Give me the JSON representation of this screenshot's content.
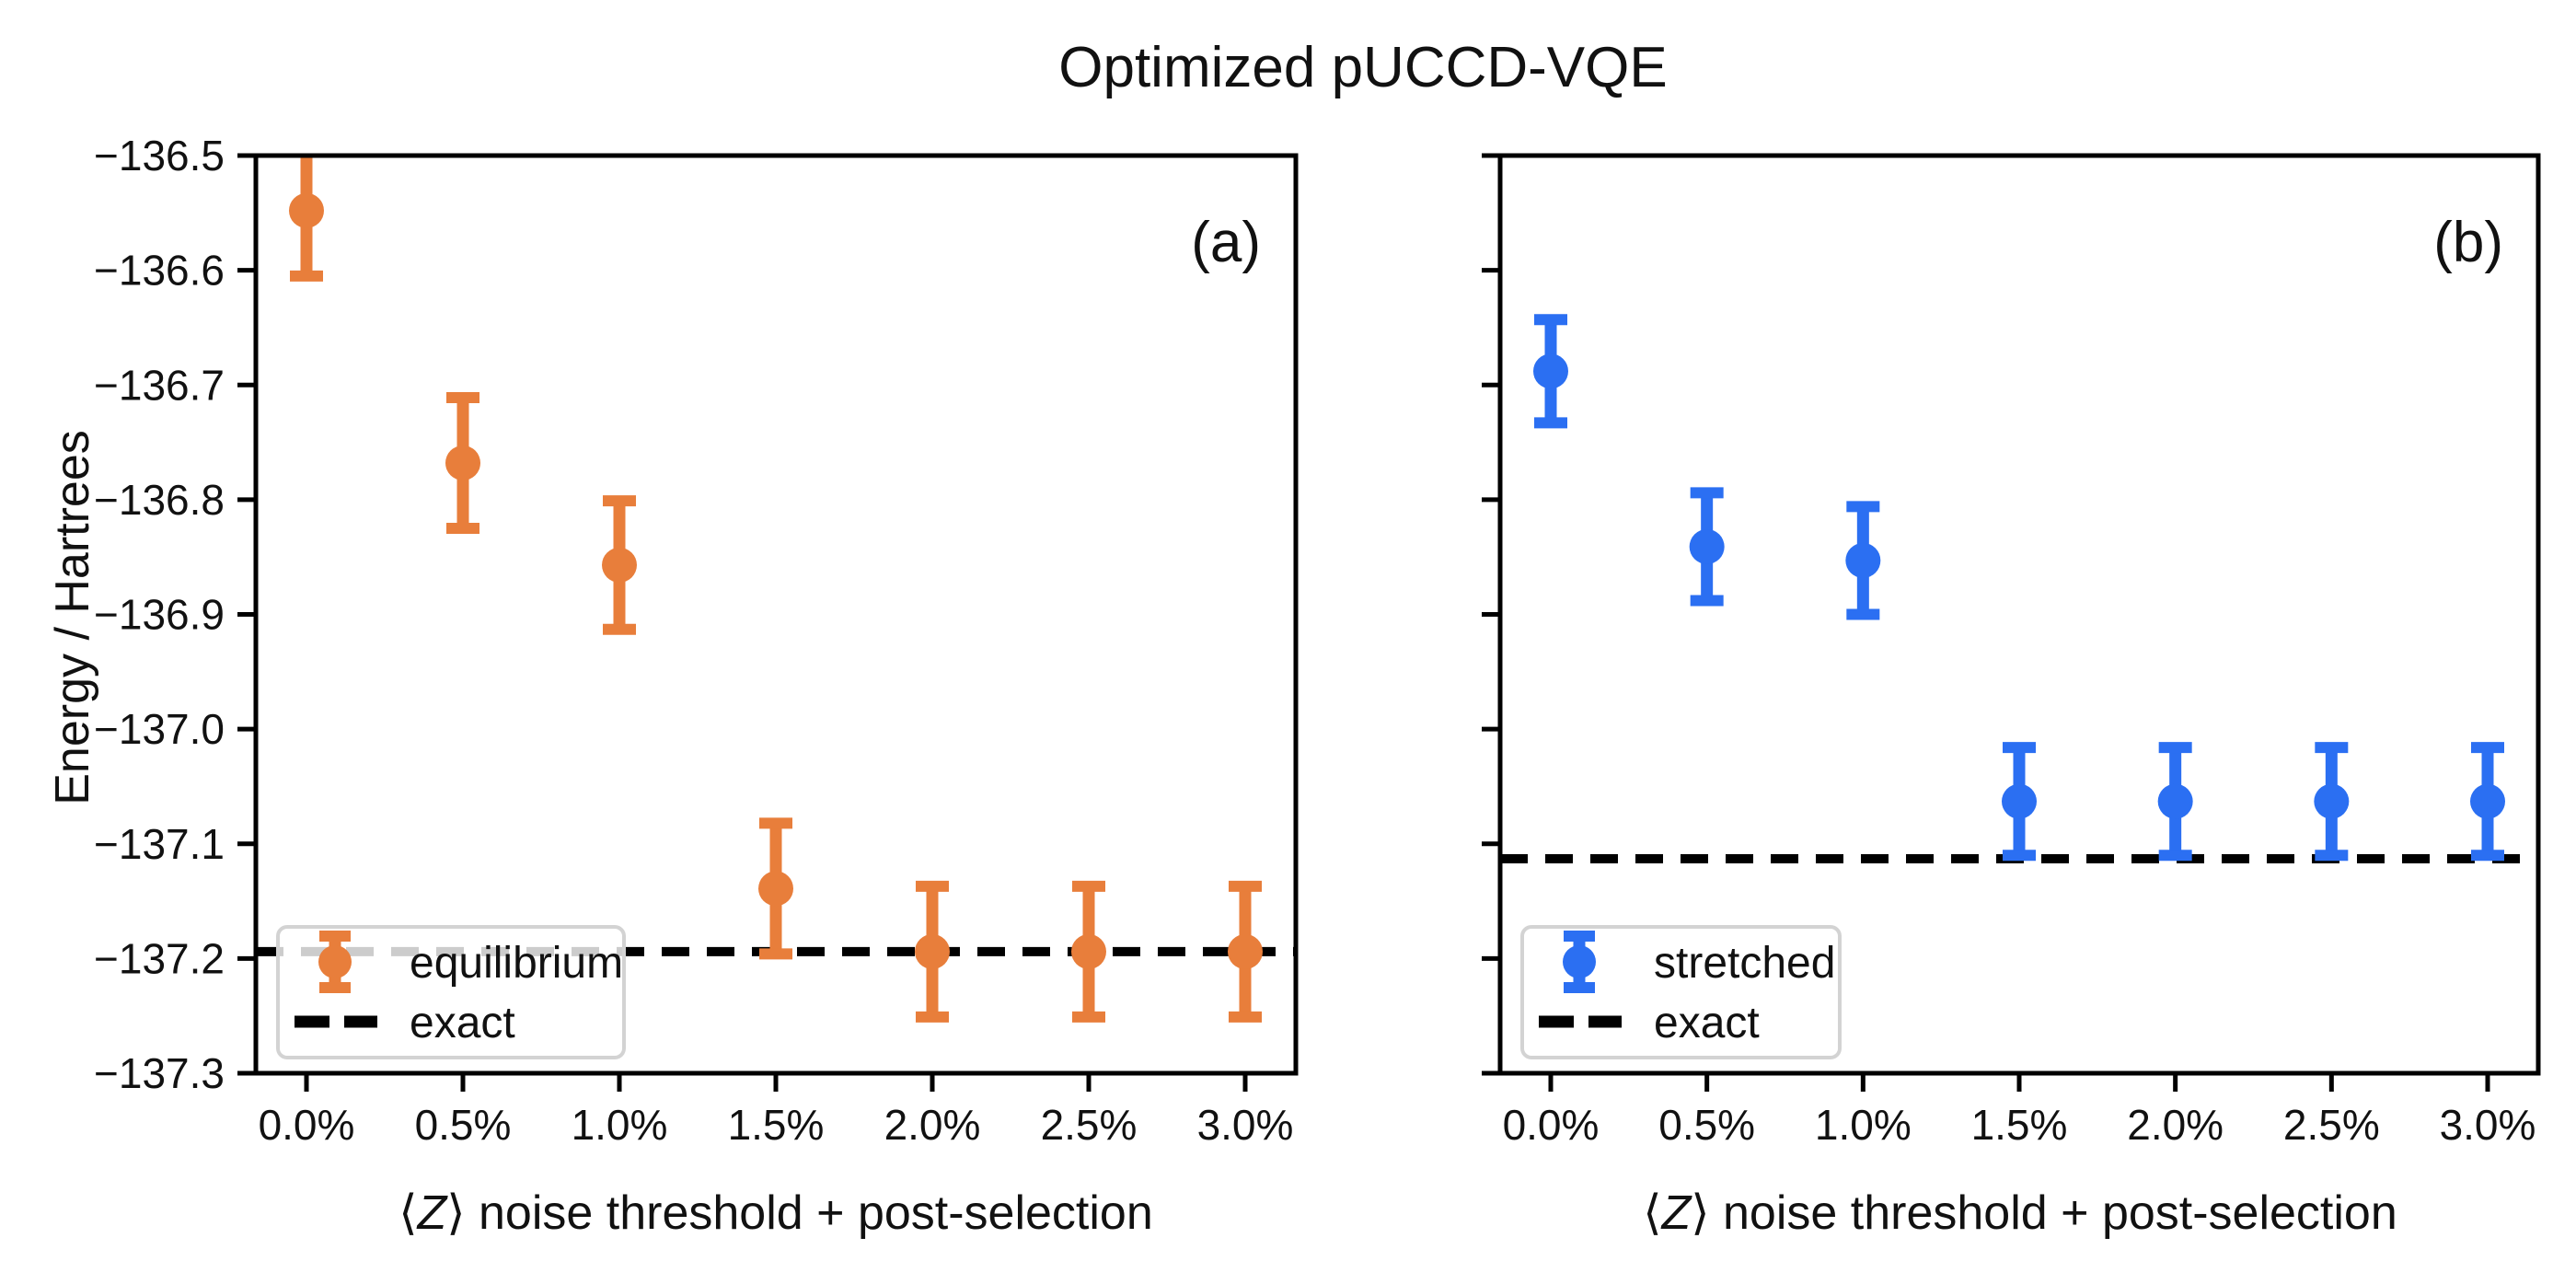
{
  "title": "Optimized pUCCD-VQE",
  "ylabel": "Energy / Hartrees",
  "xlabel": {
    "pre": "⟨",
    "var": "Z",
    "post": "⟩ noise threshold + post-selection"
  },
  "colors": {
    "equilibrium": "#E87E3B",
    "stretched": "#2B6FF2",
    "exact": "#000000",
    "legend_border": "#D3D3D3",
    "text": "#111111"
  },
  "chart_data": [
    {
      "type": "scatter",
      "panel_label": "(a)",
      "series": [
        {
          "name": "equilibrium",
          "color_key": "equilibrium",
          "categories": [
            "0.0%",
            "0.5%",
            "1.0%",
            "1.5%",
            "2.0%",
            "2.5%",
            "3.0%"
          ],
          "values": [
            -136.548,
            -136.768,
            -136.857,
            -137.139,
            -137.194,
            -137.194,
            -137.194
          ],
          "errors": [
            0.057,
            0.057,
            0.056,
            0.057,
            0.057,
            0.057,
            0.057
          ]
        }
      ],
      "exact_line": {
        "label": "exact",
        "value": -137.194
      },
      "legend": {
        "entries": [
          "equilibrium",
          "exact"
        ],
        "position": "lower left"
      },
      "ylim": [
        -137.3,
        -136.5
      ],
      "ytick_step": 0.1,
      "show_ytick_labels": true,
      "grid": false
    },
    {
      "type": "scatter",
      "panel_label": "(b)",
      "series": [
        {
          "name": "stretched",
          "color_key": "stretched",
          "categories": [
            "0.0%",
            "0.5%",
            "1.0%",
            "1.5%",
            "2.0%",
            "2.5%",
            "3.0%"
          ],
          "values": [
            -136.688,
            -136.841,
            -136.853,
            -137.063,
            -137.063,
            -137.063,
            -137.063
          ],
          "errors": [
            0.045,
            0.047,
            0.047,
            0.047,
            0.047,
            0.047,
            0.047
          ]
        }
      ],
      "exact_line": {
        "label": "exact",
        "value": -137.113
      },
      "legend": {
        "entries": [
          "stretched",
          "exact"
        ],
        "position": "lower left"
      },
      "ylim": [
        -137.3,
        -136.5
      ],
      "ytick_step": 0.1,
      "show_ytick_labels": false,
      "grid": false
    }
  ]
}
